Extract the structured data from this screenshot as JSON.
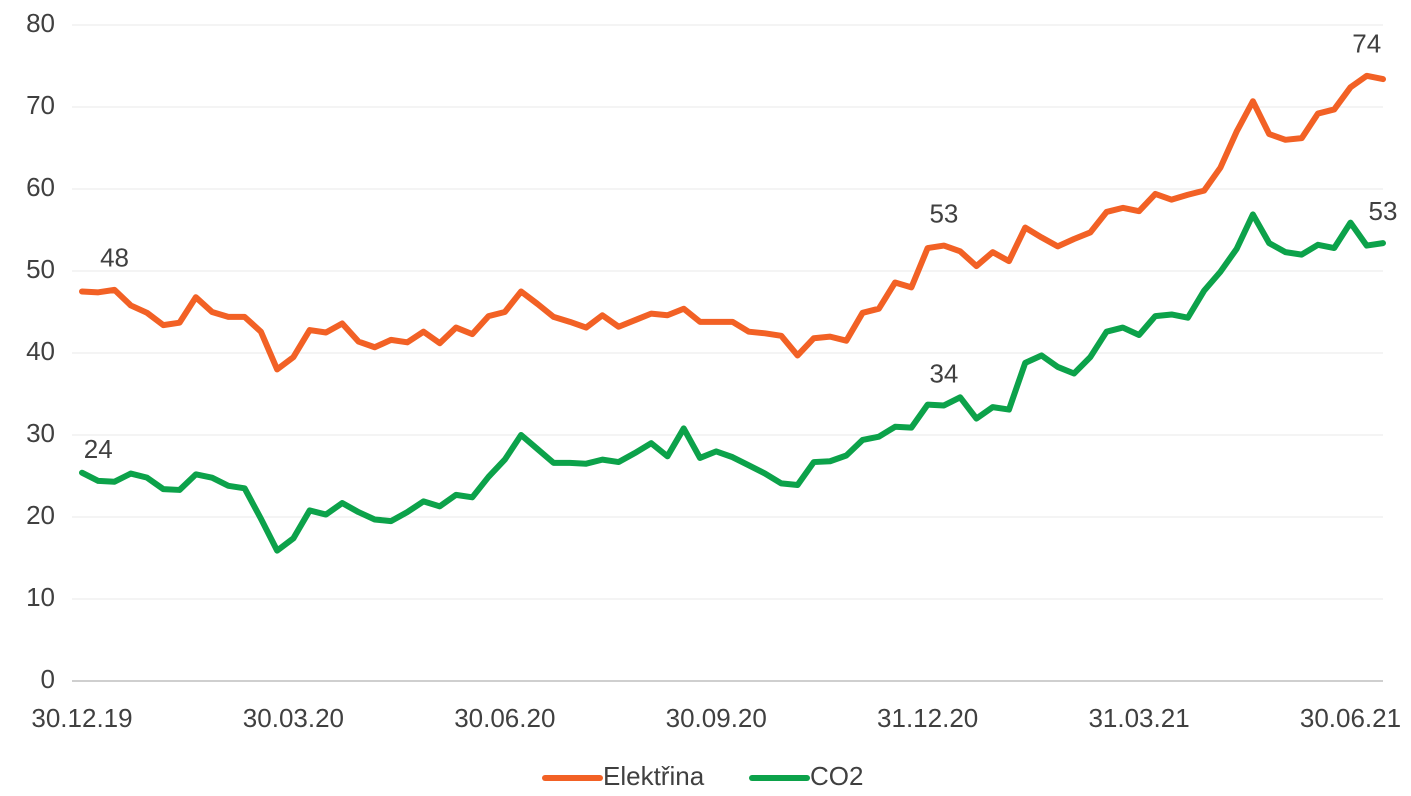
{
  "chart_data": {
    "type": "line",
    "categories": [
      "30.12.19",
      null,
      null,
      null,
      null,
      null,
      null,
      null,
      null,
      null,
      null,
      null,
      null,
      "30.03.20",
      null,
      null,
      null,
      null,
      null,
      null,
      null,
      null,
      null,
      null,
      null,
      null,
      "30.06.20",
      null,
      null,
      null,
      null,
      null,
      null,
      null,
      null,
      null,
      null,
      null,
      null,
      "30.09.20",
      null,
      null,
      null,
      null,
      null,
      null,
      null,
      null,
      null,
      null,
      null,
      null,
      "31.12.20",
      null,
      null,
      null,
      null,
      null,
      null,
      null,
      null,
      null,
      null,
      null,
      null,
      "31.03.21",
      null,
      null,
      null,
      null,
      null,
      null,
      null,
      null,
      null,
      null,
      null,
      null,
      "30.06.21",
      null,
      null
    ],
    "series": [
      {
        "name": "Elektřina",
        "color": "#f26125",
        "values": [
          47.5,
          47.4,
          47.7,
          45.8,
          44.9,
          43.4,
          43.7,
          46.8,
          45.0,
          44.4,
          44.4,
          42.6,
          38.0,
          39.5,
          42.8,
          42.5,
          43.6,
          41.4,
          40.7,
          41.6,
          41.3,
          42.6,
          41.2,
          43.1,
          42.3,
          44.5,
          45.0,
          47.5,
          46.0,
          44.4,
          43.8,
          43.1,
          44.6,
          43.2,
          44.0,
          44.8,
          44.6,
          45.4,
          43.8,
          43.8,
          43.8,
          42.6,
          42.4,
          42.1,
          39.7,
          41.8,
          42.0,
          41.5,
          44.9,
          45.4,
          48.6,
          48.0,
          52.8,
          53.1,
          52.4,
          50.6,
          52.3,
          51.2,
          55.3,
          54.1,
          53.0,
          53.9,
          54.7,
          57.2,
          57.7,
          57.3,
          59.4,
          58.7,
          59.3,
          59.8,
          62.6,
          67.0,
          70.7,
          66.7,
          66.0,
          66.2,
          69.2,
          69.7,
          72.4,
          73.8,
          73.4
        ],
        "value_labels": [
          null,
          null,
          "48",
          null,
          null,
          null,
          null,
          null,
          null,
          null,
          null,
          null,
          null,
          null,
          null,
          null,
          null,
          null,
          null,
          null,
          null,
          null,
          null,
          null,
          null,
          null,
          null,
          null,
          null,
          null,
          null,
          null,
          null,
          null,
          null,
          null,
          null,
          null,
          null,
          null,
          null,
          null,
          null,
          null,
          null,
          null,
          null,
          null,
          null,
          null,
          null,
          null,
          null,
          "53",
          null,
          null,
          null,
          null,
          null,
          null,
          null,
          null,
          null,
          null,
          null,
          null,
          null,
          null,
          null,
          null,
          null,
          null,
          null,
          null,
          null,
          null,
          null,
          null,
          null,
          "74",
          null
        ]
      },
      {
        "name": "CO2",
        "color": "#0ca24a",
        "values": [
          25.4,
          24.4,
          24.3,
          25.3,
          24.8,
          23.4,
          23.3,
          25.2,
          24.8,
          23.8,
          23.5,
          19.8,
          15.9,
          17.4,
          20.8,
          20.3,
          21.7,
          20.6,
          19.7,
          19.5,
          20.6,
          21.9,
          21.3,
          22.7,
          22.4,
          24.9,
          27.0,
          30.0,
          28.3,
          26.6,
          26.6,
          26.5,
          27.0,
          26.7,
          27.8,
          29.0,
          27.4,
          30.8,
          27.2,
          28.0,
          27.3,
          26.3,
          25.3,
          24.1,
          23.9,
          26.7,
          26.8,
          27.5,
          29.4,
          29.8,
          31.0,
          30.9,
          33.7,
          33.6,
          34.6,
          32.0,
          33.4,
          33.1,
          38.8,
          39.7,
          38.3,
          37.5,
          39.5,
          42.6,
          43.1,
          42.2,
          44.5,
          44.7,
          44.3,
          47.6,
          49.9,
          52.7,
          56.9,
          53.4,
          52.3,
          52.0,
          53.2,
          52.8,
          55.9,
          53.1,
          53.4
        ],
        "value_labels": [
          null,
          "24",
          null,
          null,
          null,
          null,
          null,
          null,
          null,
          null,
          null,
          null,
          null,
          null,
          null,
          null,
          null,
          null,
          null,
          null,
          null,
          null,
          null,
          null,
          null,
          null,
          null,
          null,
          null,
          null,
          null,
          null,
          null,
          null,
          null,
          null,
          null,
          null,
          null,
          null,
          null,
          null,
          null,
          null,
          null,
          null,
          null,
          null,
          null,
          null,
          null,
          null,
          null,
          "34",
          null,
          null,
          null,
          null,
          null,
          null,
          null,
          null,
          null,
          null,
          null,
          null,
          null,
          null,
          null,
          null,
          null,
          null,
          null,
          null,
          null,
          null,
          null,
          null,
          null,
          null,
          "53"
        ]
      }
    ],
    "ylim": [
      0,
      80
    ],
    "yticks": [
      0,
      10,
      20,
      30,
      40,
      50,
      60,
      70,
      80
    ],
    "grid": true,
    "legend": "bottom"
  }
}
